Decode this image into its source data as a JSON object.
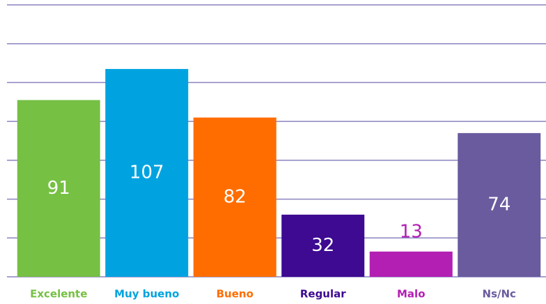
{
  "chart_data": {
    "type": "bar",
    "categories": [
      "Excelente",
      "Muy bueno",
      "Bueno",
      "Regular",
      "Malo",
      "Ns/Nc"
    ],
    "values": [
      91,
      107,
      82,
      32,
      13,
      74
    ],
    "colors": [
      "#76c043",
      "#00a3e0",
      "#ff6d00",
      "#3d0a91",
      "#b31fb3",
      "#6a5b9e"
    ],
    "ylim": [
      0,
      140
    ],
    "yticks": [
      0,
      20,
      40,
      60,
      80,
      100,
      120,
      140
    ],
    "grid": true
  }
}
